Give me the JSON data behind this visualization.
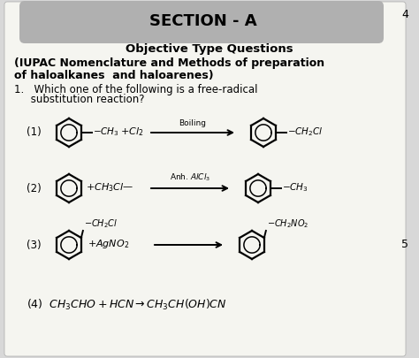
{
  "title": "SECTION - A",
  "subtitle": "Objective Type Questions",
  "subtitle2_line1": "(IUPAC Nomenclature and Methods of preparation",
  "subtitle2_line2": "of haloalkanes  and haloarenes)",
  "q_line1": "1.   Which one of the following is a free-radical",
  "q_line2": "     substitution reaction?",
  "page_number": "4",
  "bg_color": "#d8d8d8",
  "page_color": "#f5f5f0",
  "header_color": "#b0b0b0",
  "text_color": "#111111"
}
